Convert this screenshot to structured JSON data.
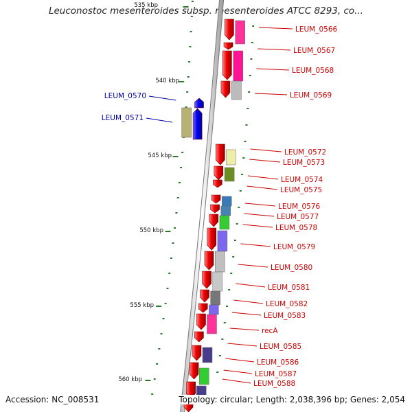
{
  "title": "Leuconostoc mesenteroides subsp. mesenteroides ATCC 8293, co...",
  "accession_text": "Accession: NC_008531",
  "topology_text": "Topology: circular; Length: 2,038,396 bp; Genes: 2,054",
  "colors": {
    "forward_gene": "#ee0000",
    "reverse_gene": "#0000ee",
    "backbone": "#888888",
    "tick": "#2a7a2a",
    "label_red": "#cc0000",
    "label_blue": "#0000aa"
  },
  "kbp_labels": [
    "535 kbp",
    "540 kbp",
    "545 kbp",
    "550 kbp",
    "555 kbp",
    "560 kbp"
  ],
  "forward_labels": [
    "LEUM_0566",
    "LEUM_0567",
    "LEUM_0568",
    "LEUM_0569",
    "LEUM_0572",
    "LEUM_0573",
    "LEUM_0574",
    "LEUM_0575",
    "LEUM_0576",
    "LEUM_0577",
    "LEUM_0578",
    "LEUM_0579",
    "LEUM_0580",
    "LEUM_0581",
    "LEUM_0582",
    "LEUM_0583",
    "recA",
    "LEUM_0585",
    "LEUM_0586",
    "LEUM_0587",
    "LEUM_0588"
  ],
  "reverse_labels": [
    "LEUM_0570",
    "LEUM_0571"
  ]
}
